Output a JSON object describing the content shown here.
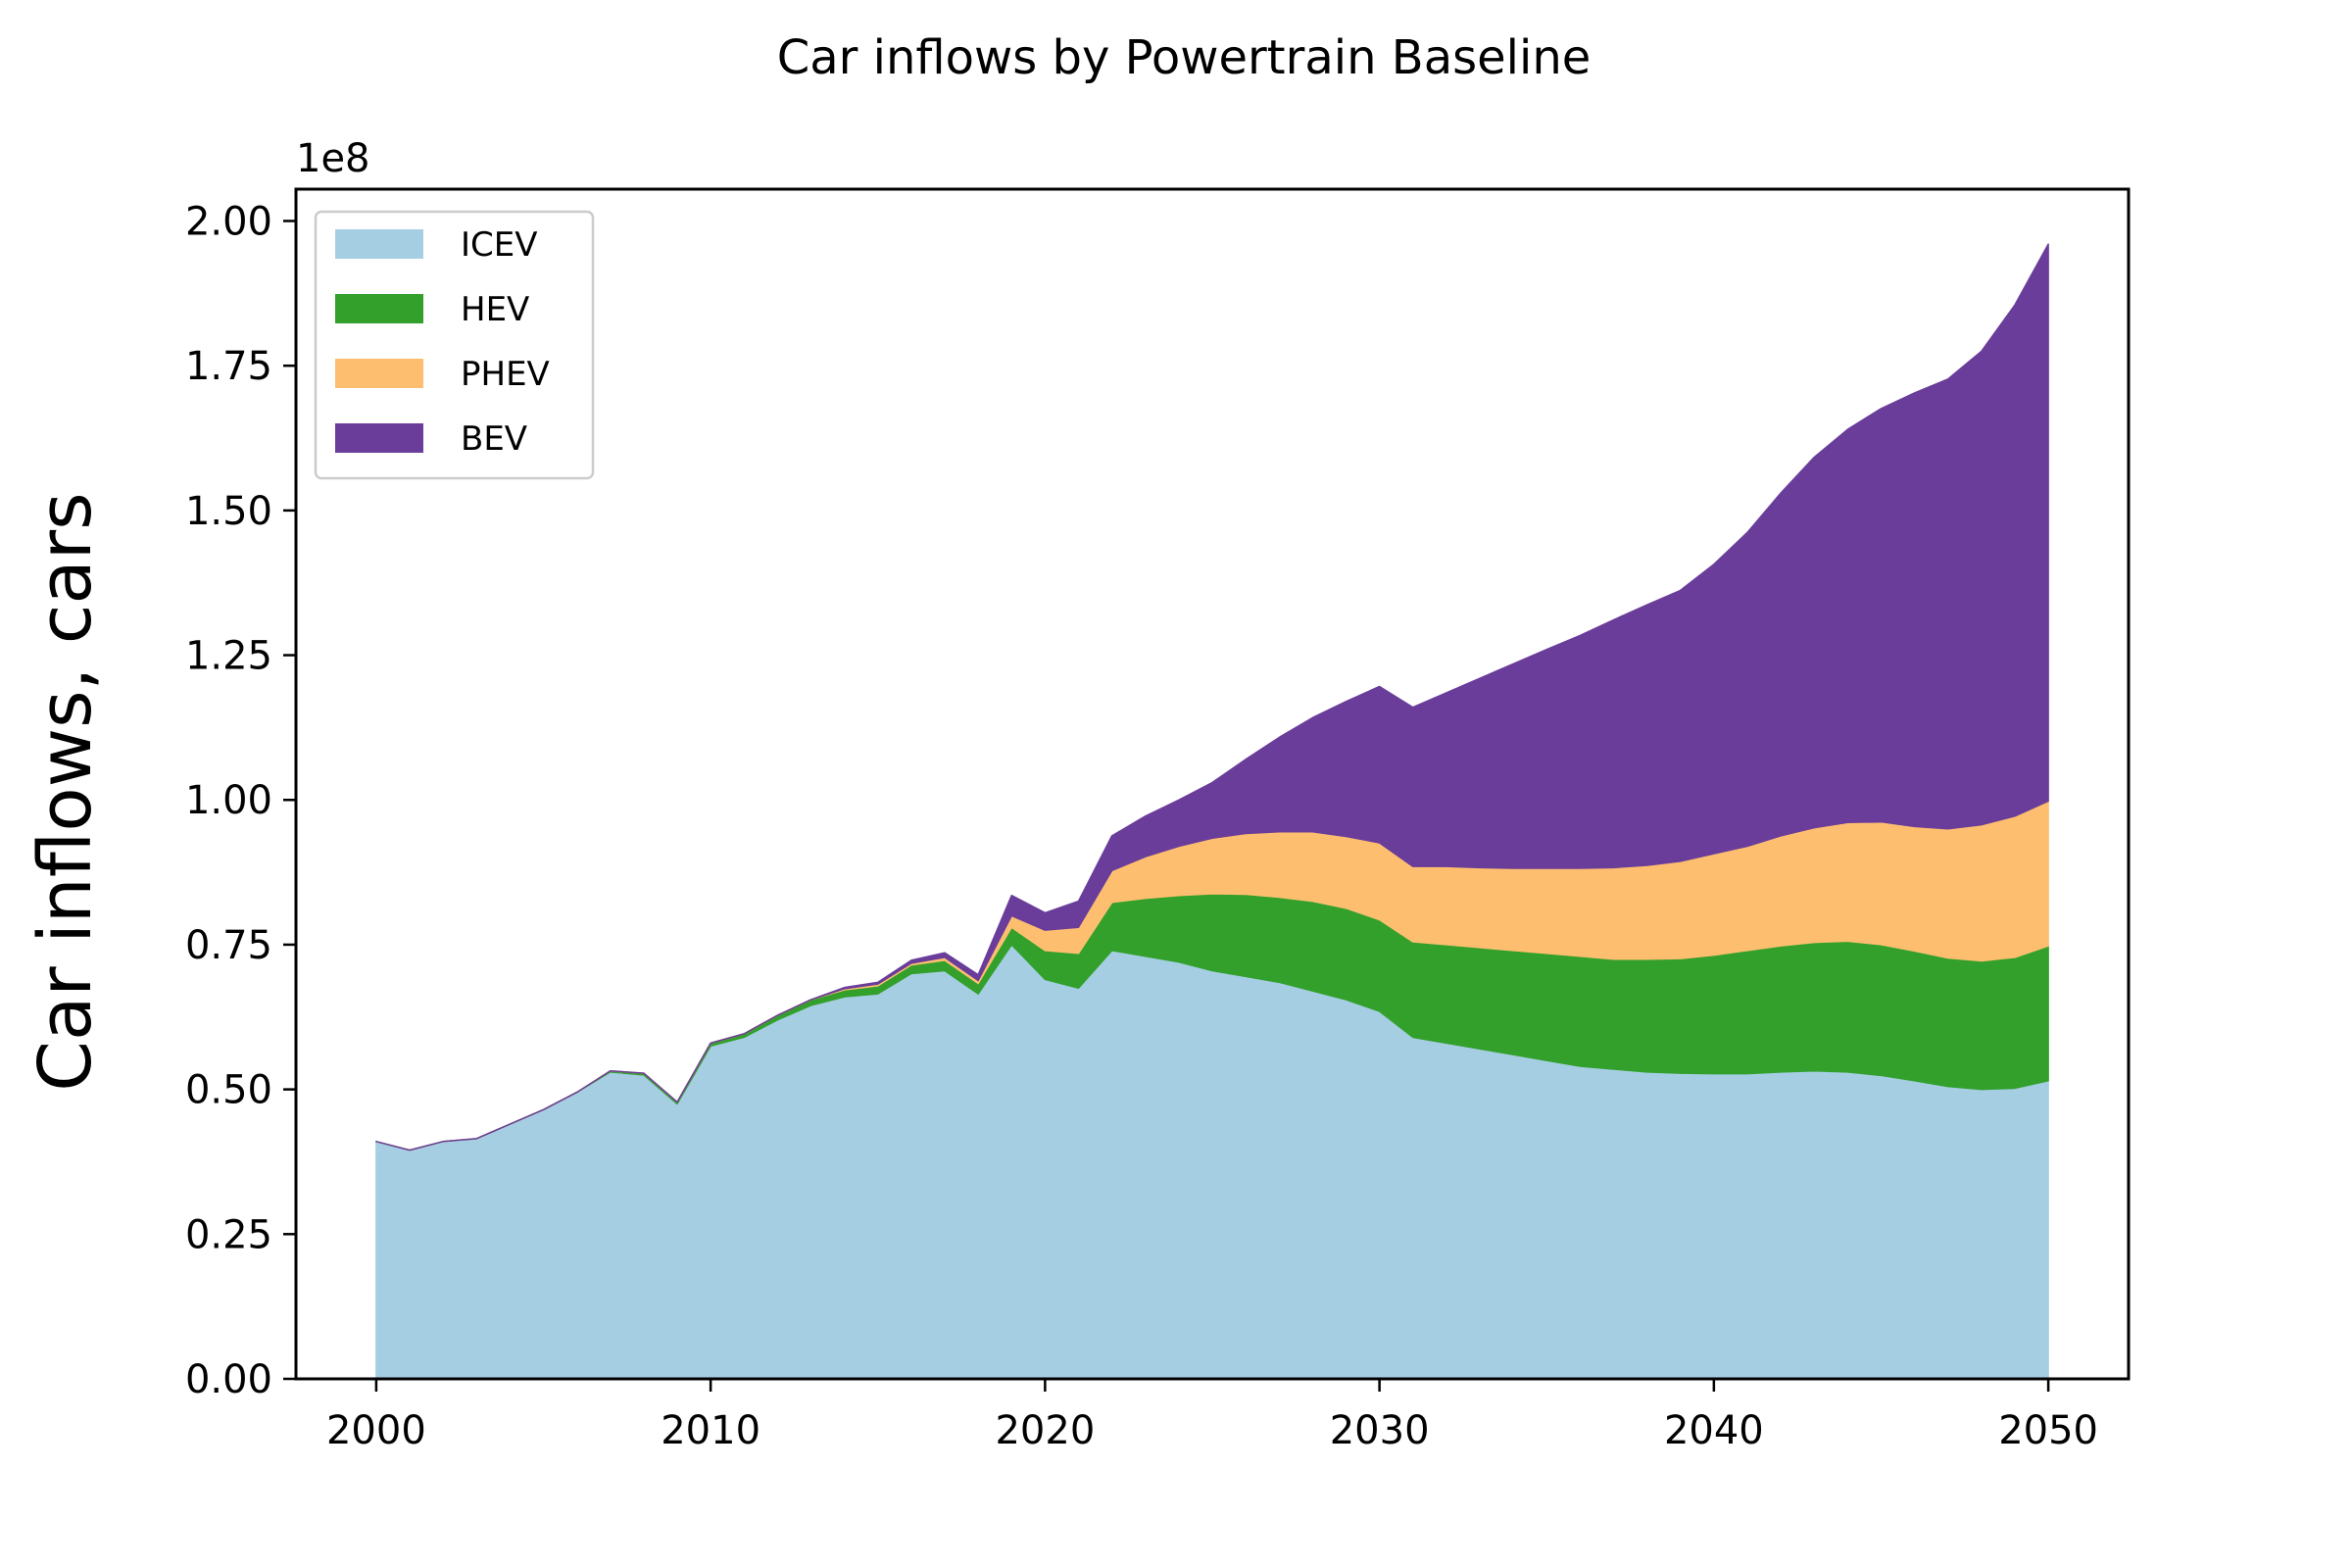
{
  "chart_data": {
    "type": "area",
    "stacked": true,
    "title": "Car inflows by Powertrain Baseline",
    "xlabel": "",
    "ylabel": "Car inflows, cars",
    "y_offset_label": "1e8",
    "y_scale": 100000000,
    "xlim": [
      1997.6,
      2052.4
    ],
    "ylim": [
      0,
      2.055
    ],
    "x_ticks": [
      2000,
      2010,
      2020,
      2030,
      2040,
      2050
    ],
    "x_tick_labels": [
      "2000",
      "2010",
      "2020",
      "2030",
      "2040",
      "2050"
    ],
    "y_ticks": [
      0,
      0.25,
      0.5,
      0.75,
      1.0,
      1.25,
      1.5,
      1.75,
      2.0
    ],
    "y_tick_labels": [
      "0.00",
      "0.25",
      "0.50",
      "0.75",
      "1.00",
      "1.25",
      "1.50",
      "1.75",
      "2.00"
    ],
    "grid": false,
    "legend_position": "upper-left",
    "x": [
      2000,
      2001,
      2002,
      2003,
      2004,
      2005,
      2006,
      2007,
      2008,
      2009,
      2010,
      2011,
      2012,
      2013,
      2014,
      2015,
      2016,
      2017,
      2018,
      2019,
      2020,
      2021,
      2022,
      2023,
      2024,
      2025,
      2026,
      2027,
      2028,
      2029,
      2030,
      2031,
      2032,
      2033,
      2034,
      2035,
      2036,
      2037,
      2038,
      2039,
      2040,
      2041,
      2042,
      2043,
      2044,
      2045,
      2046,
      2047,
      2048,
      2049,
      2050
    ],
    "series": [
      {
        "name": "ICEV",
        "color": "#a6cee3",
        "values": [
          0.41,
          0.395,
          0.41,
          0.415,
          0.44,
          0.465,
          0.495,
          0.53,
          0.525,
          0.475,
          0.575,
          0.59,
          0.62,
          0.645,
          0.66,
          0.665,
          0.7,
          0.705,
          0.665,
          0.75,
          0.69,
          0.675,
          0.74,
          0.73,
          0.72,
          0.705,
          0.695,
          0.685,
          0.67,
          0.655,
          0.635,
          0.59,
          0.58,
          0.57,
          0.56,
          0.55,
          0.54,
          0.535,
          0.53,
          0.528,
          0.527,
          0.527,
          0.53,
          0.532,
          0.53,
          0.524,
          0.515,
          0.505,
          0.5,
          0.502,
          0.515
        ]
      },
      {
        "name": "HEV",
        "color": "#33a02c",
        "values": [
          0.0,
          0.0,
          0.0,
          0.0,
          0.0,
          0.0,
          0.0,
          0.002,
          0.003,
          0.003,
          0.005,
          0.006,
          0.008,
          0.01,
          0.012,
          0.014,
          0.015,
          0.018,
          0.018,
          0.03,
          0.05,
          0.06,
          0.083,
          0.1,
          0.115,
          0.133,
          0.142,
          0.147,
          0.155,
          0.158,
          0.158,
          0.165,
          0.17,
          0.175,
          0.18,
          0.185,
          0.19,
          0.19,
          0.195,
          0.198,
          0.205,
          0.213,
          0.218,
          0.222,
          0.226,
          0.226,
          0.224,
          0.222,
          0.222,
          0.226,
          0.233
        ]
      },
      {
        "name": "PHEV",
        "color": "#fdbf6f",
        "values": [
          0.0,
          0.0,
          0.0,
          0.0,
          0.0,
          0.0,
          0.0,
          0.0,
          0.0,
          0.0,
          0.0,
          0.0,
          0.0,
          0.0,
          0.002,
          0.003,
          0.003,
          0.005,
          0.005,
          0.02,
          0.035,
          0.045,
          0.055,
          0.072,
          0.085,
          0.096,
          0.105,
          0.113,
          0.12,
          0.124,
          0.133,
          0.13,
          0.135,
          0.138,
          0.142,
          0.147,
          0.152,
          0.158,
          0.162,
          0.168,
          0.175,
          0.18,
          0.19,
          0.198,
          0.205,
          0.212,
          0.215,
          0.223,
          0.235,
          0.244,
          0.25
        ]
      },
      {
        "name": "BEV",
        "color": "#6a3d9a",
        "values": [
          0.0,
          0.0,
          0.0,
          0.0,
          0.0,
          0.0,
          0.0,
          0.0,
          0.0,
          0.0,
          0.0,
          0.0,
          0.0,
          0.0,
          0.002,
          0.003,
          0.005,
          0.008,
          0.01,
          0.035,
          0.03,
          0.045,
          0.06,
          0.07,
          0.08,
          0.096,
          0.128,
          0.163,
          0.197,
          0.233,
          0.27,
          0.275,
          0.3,
          0.327,
          0.353,
          0.378,
          0.402,
          0.428,
          0.45,
          0.468,
          0.5,
          0.542,
          0.592,
          0.64,
          0.679,
          0.714,
          0.749,
          0.777,
          0.818,
          0.883,
          0.962
        ]
      }
    ]
  }
}
